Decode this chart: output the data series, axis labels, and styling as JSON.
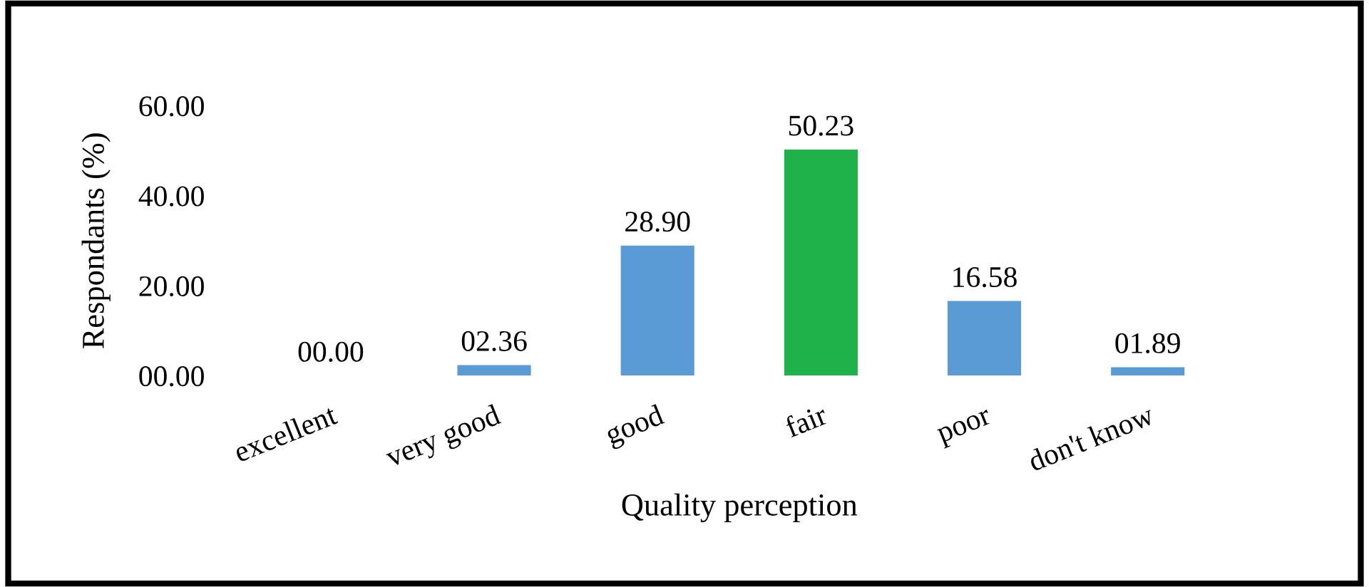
{
  "chart_data": {
    "type": "bar",
    "xlabel": "Quality perception",
    "ylabel": "Respondants (%)",
    "categories": [
      "excellent",
      "very good",
      "good",
      "fair",
      "poor",
      "don't know"
    ],
    "values": [
      0.0,
      2.36,
      28.9,
      50.23,
      16.58,
      1.89
    ],
    "value_labels": [
      "00.00",
      "02.36",
      "28.90",
      "50.23",
      "16.58",
      "01.89"
    ],
    "colors": [
      "#5b9bd5",
      "#5b9bd5",
      "#5b9bd5",
      "#1fb24a",
      "#5b9bd5",
      "#5b9bd5"
    ],
    "ylim": [
      0,
      60
    ],
    "yticks": [
      {
        "value": 0,
        "label": "00.00"
      },
      {
        "value": 20,
        "label": "20.00"
      },
      {
        "value": 40,
        "label": "40.00"
      },
      {
        "value": 60,
        "label": "60.00"
      }
    ],
    "grid": false
  }
}
